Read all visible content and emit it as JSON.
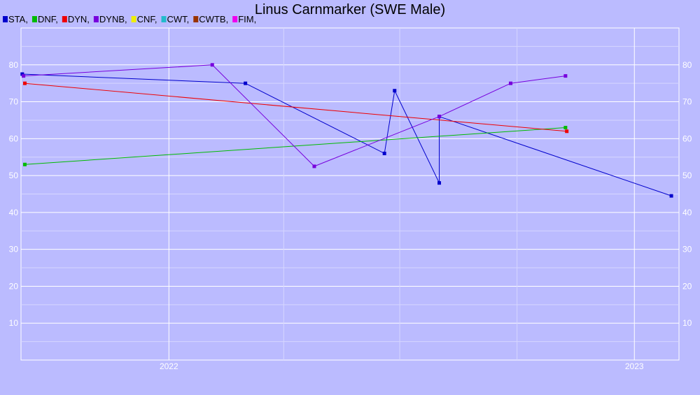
{
  "chart_data": {
    "type": "line",
    "title": "Linus Carnmarker (SWE Male)",
    "xlabel": "",
    "ylabel": "",
    "x_axis_type": "date",
    "xlim": [
      "2021-09-07",
      "2023-02-05"
    ],
    "ylim": [
      0,
      90
    ],
    "y_ticks": [
      10,
      20,
      30,
      40,
      50,
      60,
      70,
      80
    ],
    "x_ticks": [
      {
        "date": "2022-01-01",
        "label": "2022"
      },
      {
        "date": "2023-01-01",
        "label": "2023"
      }
    ],
    "x_minor_gridlines": [
      "2022-04-01",
      "2022-07-01",
      "2022-10-01"
    ],
    "grid": true,
    "legend_position": "top-left",
    "legend": [
      {
        "name": "STA",
        "label": "STA,",
        "color": "#0000cc"
      },
      {
        "name": "DNF",
        "label": "DNF,",
        "color": "#00bb00"
      },
      {
        "name": "DYN",
        "label": "DYN,",
        "color": "#ee0000"
      },
      {
        "name": "DYNB",
        "label": "DYNB,",
        "color": "#7700dd"
      },
      {
        "name": "CNF",
        "label": "CNF,",
        "color": "#eeee00"
      },
      {
        "name": "CWT",
        "label": "CWT,",
        "color": "#22bbcc"
      },
      {
        "name": "CWTB",
        "label": "CWTB,",
        "color": "#993300"
      },
      {
        "name": "FIM",
        "label": "FIM,",
        "color": "#ee00ee"
      }
    ],
    "series": [
      {
        "name": "STA",
        "color": "#0000cc",
        "points": [
          {
            "x": "2021-09-08",
            "y": 77.5
          },
          {
            "x": "2022-03-02",
            "y": 75
          },
          {
            "x": "2022-06-19",
            "y": 56
          },
          {
            "x": "2022-06-27",
            "y": 73
          },
          {
            "x": "2022-08-01",
            "y": 48
          },
          {
            "x": "2022-08-01",
            "y": 66
          },
          {
            "x": "2023-01-30",
            "y": 44.5
          }
        ]
      },
      {
        "name": "DNF",
        "color": "#00bb00",
        "points": [
          {
            "x": "2021-09-10",
            "y": 53
          },
          {
            "x": "2022-11-08",
            "y": 63
          }
        ]
      },
      {
        "name": "DYN",
        "color": "#ee0000",
        "points": [
          {
            "x": "2021-09-10",
            "y": 75
          },
          {
            "x": "2022-11-09",
            "y": 62
          }
        ]
      },
      {
        "name": "DYNB",
        "color": "#7700dd",
        "points": [
          {
            "x": "2021-09-09",
            "y": 77
          },
          {
            "x": "2022-02-04",
            "y": 80
          },
          {
            "x": "2022-04-25",
            "y": 52.5
          },
          {
            "x": "2022-08-01",
            "y": 66
          },
          {
            "x": "2022-09-26",
            "y": 75
          },
          {
            "x": "2022-11-08",
            "y": 77
          }
        ]
      }
    ]
  }
}
